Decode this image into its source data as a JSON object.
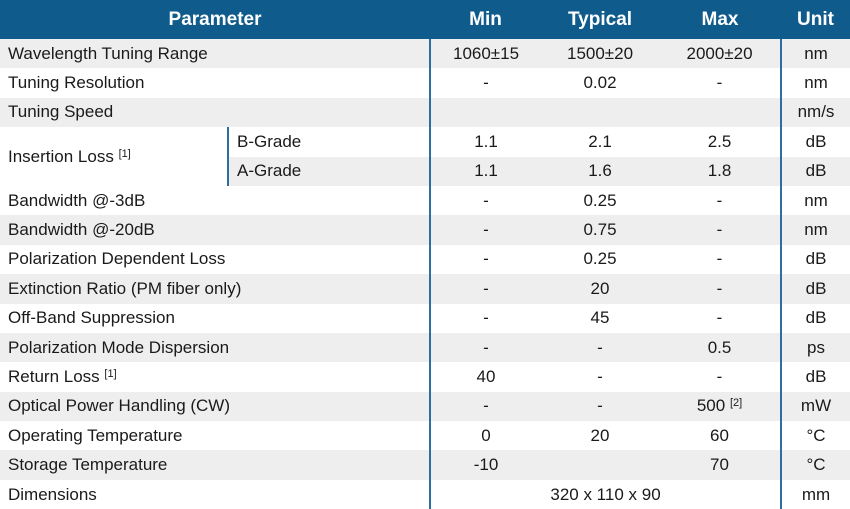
{
  "header": {
    "parameter": "Parameter",
    "min": "Min",
    "typical": "Typical",
    "max": "Max",
    "unit": "Unit"
  },
  "rows": {
    "wavelength": {
      "label": "Wavelength Tuning Range",
      "min": "1060±15",
      "typ": "1500±20",
      "max": "2000±20",
      "unit": "nm"
    },
    "resolution": {
      "label": "Tuning Resolution",
      "min": "-",
      "typ": "0.02",
      "max": "-",
      "unit": "nm"
    },
    "speed": {
      "label": "Tuning Speed",
      "min": "",
      "typ": "",
      "max": "",
      "unit": "nm/s"
    },
    "insertion": {
      "label": "Insertion Loss",
      "note": "[1]",
      "b_grade": {
        "label": "B-Grade",
        "min": "1.1",
        "typ": "2.1",
        "max": "2.5",
        "unit": "dB"
      },
      "a_grade": {
        "label": "A-Grade",
        "min": "1.1",
        "typ": "1.6",
        "max": "1.8",
        "unit": "dB"
      }
    },
    "bw3": {
      "label": "Bandwidth @-3dB",
      "min": "-",
      "typ": "0.25",
      "max": "-",
      "unit": "nm"
    },
    "bw20": {
      "label": "Bandwidth @-20dB",
      "min": "-",
      "typ": "0.75",
      "max": "-",
      "unit": "nm"
    },
    "pdl": {
      "label": "Polarization Dependent Loss",
      "min": "-",
      "typ": "0.25",
      "max": "-",
      "unit": "dB"
    },
    "extinction": {
      "label": "Extinction Ratio (PM fiber only)",
      "min": "-",
      "typ": "20",
      "max": "-",
      "unit": "dB"
    },
    "offband": {
      "label": "Off-Band Suppression",
      "min": "-",
      "typ": "45",
      "max": "-",
      "unit": "dB"
    },
    "pmd": {
      "label": "Polarization Mode Dispersion",
      "min": "-",
      "typ": "-",
      "max": "0.5",
      "unit": "ps"
    },
    "return": {
      "label": "Return Loss",
      "note": "[1]",
      "min": "40",
      "typ": "-",
      "max": "-",
      "unit": "dB"
    },
    "power": {
      "label": "Optical Power Handling (CW)",
      "min": "-",
      "typ": "-",
      "max": "500",
      "max_note": "[2]",
      "unit": "mW"
    },
    "optemp": {
      "label": "Operating Temperature",
      "min": "0",
      "typ": "20",
      "max": "60",
      "unit": "°C"
    },
    "sttemp": {
      "label": "Storage Temperature",
      "min": "-10",
      "typ": "",
      "max": "70",
      "unit": "°C"
    },
    "dimensions": {
      "label": "Dimensions",
      "value": "320 x 110 x 90",
      "unit": "mm"
    }
  }
}
